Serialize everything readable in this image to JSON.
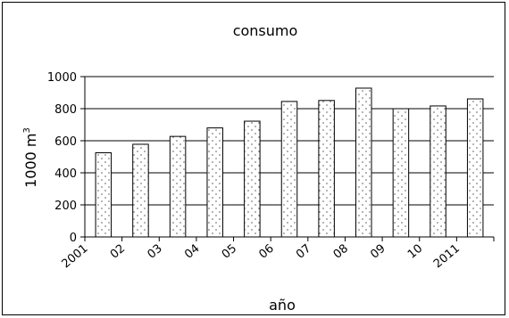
{
  "chart_data": {
    "type": "bar",
    "title": "consumo",
    "xlabel": "año",
    "ylabel": "1000 m",
    "ylabel_superscript": "3",
    "categories": [
      "2001",
      "02",
      "03",
      "04",
      "05",
      "06",
      "07",
      "08",
      "09",
      "10",
      "2011"
    ],
    "values": [
      525,
      578,
      627,
      680,
      722,
      845,
      851,
      928,
      800,
      817,
      861
    ],
    "ylim": [
      0,
      1000
    ],
    "yticks": [
      0,
      200,
      400,
      600,
      800,
      1000
    ],
    "grid": true,
    "bar_pattern": "dotted",
    "colors": {
      "bar_fill": "#ffffff",
      "bar_stroke": "#000000",
      "grid": "#000000"
    }
  }
}
